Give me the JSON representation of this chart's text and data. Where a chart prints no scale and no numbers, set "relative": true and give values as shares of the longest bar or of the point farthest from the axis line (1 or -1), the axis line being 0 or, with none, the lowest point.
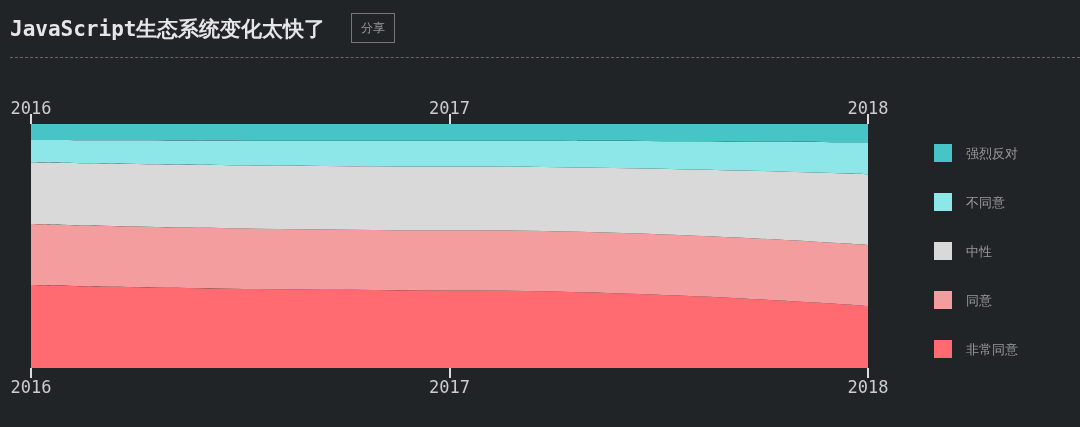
{
  "chart_data": {
    "type": "area",
    "title": "JavaScript生态系统变化太快了",
    "annotations": [
      "分享"
    ],
    "x": [
      2016,
      2017,
      2018
    ],
    "xlim": [
      2016,
      2018
    ],
    "xticks": [
      2016,
      2017,
      2018
    ],
    "x2lim": [
      2016,
      2018
    ],
    "x2ticks": [
      2016,
      2017,
      2018
    ],
    "relative": true,
    "stacked": true,
    "legend": "right",
    "series": [
      {
        "name": "非常同意",
        "color": "#ff6b70",
        "values": [
          0.34,
          0.318,
          0.254
        ]
      },
      {
        "name": "同意",
        "color": "#f49d9e",
        "values": [
          0.25,
          0.247,
          0.25
        ]
      },
      {
        "name": "中性",
        "color": "#d9d9d9",
        "values": [
          0.253,
          0.261,
          0.29
        ]
      },
      {
        "name": "不同意",
        "color": "#8de6e7",
        "values": [
          0.091,
          0.105,
          0.131
        ]
      },
      {
        "name": "强烈反对",
        "color": "#47c5c6",
        "values": [
          0.066,
          0.069,
          0.075
        ]
      }
    ]
  }
}
